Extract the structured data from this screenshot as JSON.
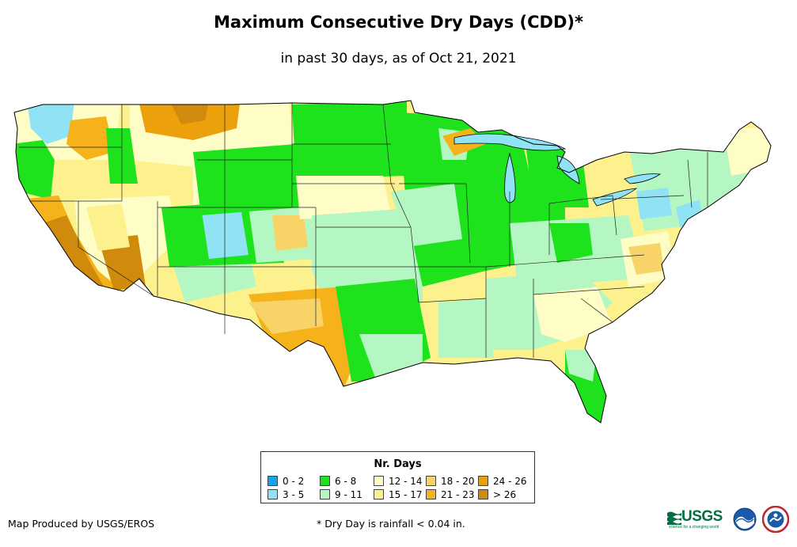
{
  "title": "Maximum Consecutive Dry Days (CDD)*",
  "subtitle": "in past 30 days, as of Oct 21, 2021",
  "legend": {
    "title": "Nr. Days",
    "items": [
      {
        "label": "0 - 2",
        "color": "#12a4ef"
      },
      {
        "label": "3 - 5",
        "color": "#8fe3f5"
      },
      {
        "label": "6 - 8",
        "color": "#1ee31c"
      },
      {
        "label": "9 - 11",
        "color": "#b5f7c2"
      },
      {
        "label": "12 - 14",
        "color": "#fdfdc5"
      },
      {
        "label": "15 - 17",
        "color": "#fdf18d"
      },
      {
        "label": "18 - 20",
        "color": "#f8d468"
      },
      {
        "label": "21 - 23",
        "color": "#f5b21b"
      },
      {
        "label": "24 - 26",
        "color": "#eba00c"
      },
      {
        "label": "> 26",
        "color": "#d08a0c"
      }
    ]
  },
  "credit": "Map Produced by USGS/EROS",
  "footnote": "* Dry Day is rainfall < 0.04 in.",
  "logos": {
    "usgs_text": "USGS",
    "usgs_tagline": "science for a changing world"
  }
}
